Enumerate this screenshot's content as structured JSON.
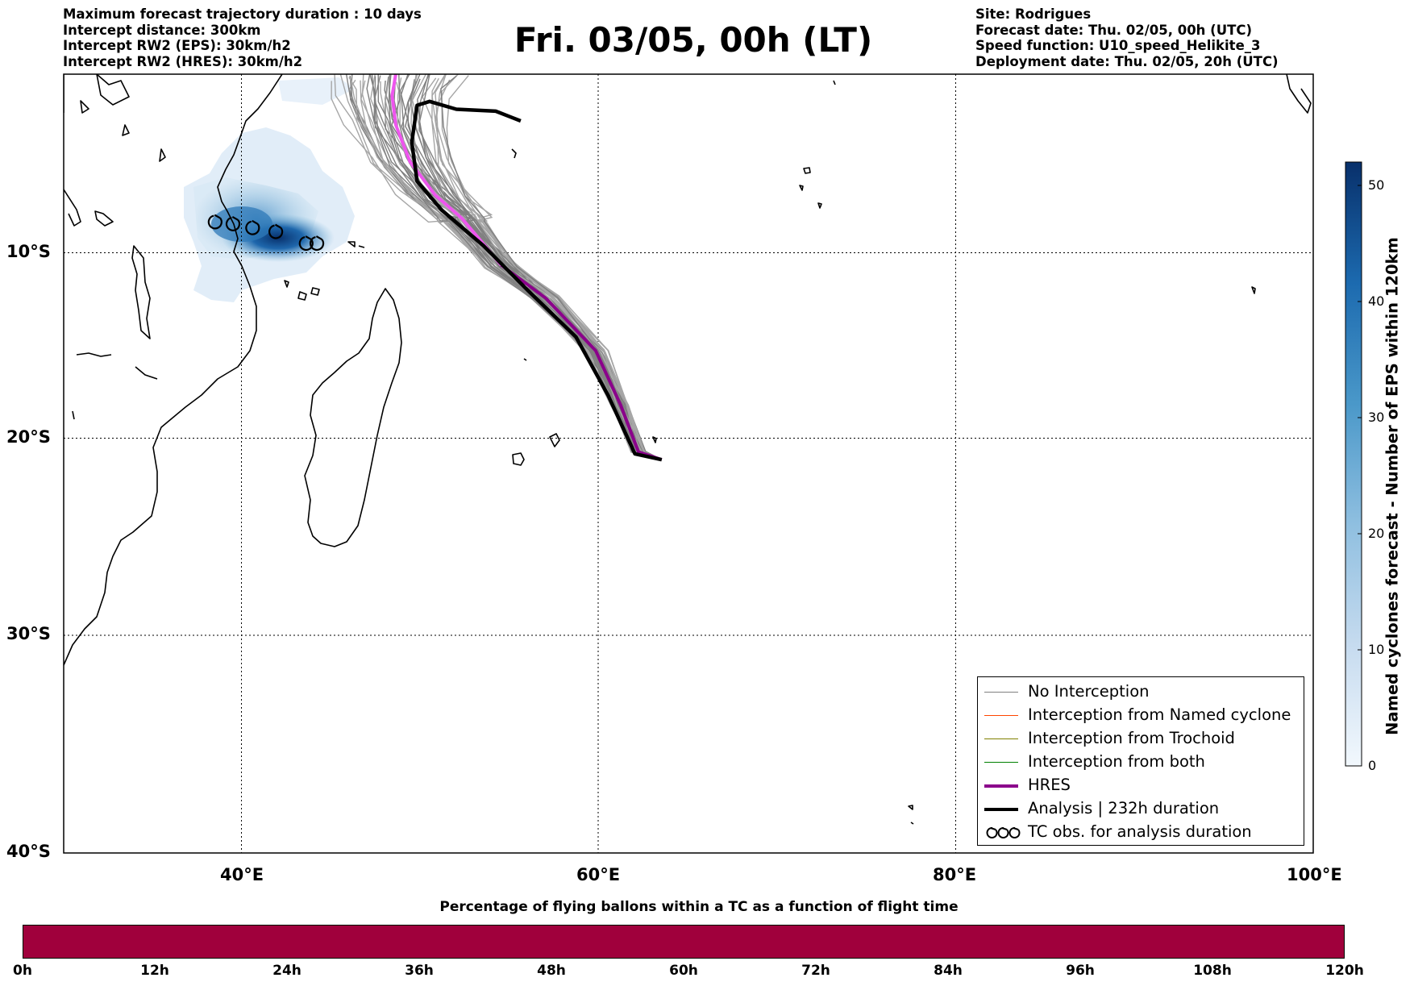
{
  "header": {
    "left_lines": [
      "Maximum forecast trajectory duration : 10 days",
      "Intercept distance: 300km",
      "Intercept RW2 (EPS):  30km/h2",
      "Intercept RW2 (HRES): 30km/h2"
    ],
    "title": "Fri. 03/05, 00h (LT)",
    "right_lines": [
      "Site: Rodrigues",
      "Forecast date: Thu. 02/05, 00h (UTC)",
      "Speed function: U10_speed_Helikite_3",
      "Deployment date: Thu. 02/05, 20h (UTC)"
    ]
  },
  "map": {
    "lon_range": [
      30,
      100
    ],
    "lat_range": [
      -40,
      0
    ],
    "x_ticks": [
      {
        "value": 40,
        "label": "40°E"
      },
      {
        "value": 60,
        "label": "60°E"
      },
      {
        "value": 80,
        "label": "80°E"
      },
      {
        "value": 100,
        "label": "100°E"
      }
    ],
    "y_ticks": [
      {
        "value": -10,
        "label": "10°S"
      },
      {
        "value": -20,
        "label": "20°S"
      },
      {
        "value": -30,
        "label": "30°S"
      },
      {
        "value": -40,
        "label": "40°S"
      }
    ],
    "grid": "dotted",
    "colors": {
      "no_interception": "#808080",
      "named_cyclone": "#ff4500",
      "trochoid": "#808000",
      "both": "#008000",
      "hres": "#8b008b",
      "hres_early": "#ee55ee",
      "analysis": "#000000",
      "density_dark": "#08306b",
      "density_light": "#deebf7",
      "bottom_bar": "#a0003c"
    }
  },
  "chart_data": {
    "type": "map-trajectories",
    "hres_track": [
      [
        63.5,
        -19.8
      ],
      [
        62.2,
        -19.4
      ],
      [
        61.2,
        -17.0
      ],
      [
        59.8,
        -14.2
      ],
      [
        57.0,
        -11.5
      ],
      [
        54.5,
        -9.8
      ],
      [
        52.3,
        -7.4
      ],
      [
        50.8,
        -6.2
      ],
      [
        49.4,
        -4.5
      ],
      [
        48.6,
        -2.6
      ],
      [
        48.4,
        -1.1
      ],
      [
        48.6,
        0.0
      ]
    ],
    "analysis_track": [
      [
        63.5,
        -19.8
      ],
      [
        62.0,
        -19.5
      ],
      [
        60.5,
        -16.5
      ],
      [
        58.7,
        -13.5
      ],
      [
        56.0,
        -11.1
      ],
      [
        53.5,
        -8.8
      ],
      [
        51.2,
        -7.0
      ],
      [
        49.8,
        -5.5
      ],
      [
        49.5,
        -3.5
      ],
      [
        49.8,
        -1.6
      ],
      [
        50.5,
        -1.4
      ],
      [
        52.0,
        -1.8
      ],
      [
        54.2,
        -1.9
      ],
      [
        55.6,
        -2.4
      ]
    ],
    "eps_member_count": 50,
    "tc_observations": [
      [
        38.5,
        -7.6
      ],
      [
        39.5,
        -7.7
      ],
      [
        40.6,
        -7.9
      ],
      [
        41.9,
        -8.1
      ],
      [
        43.6,
        -8.7
      ],
      [
        44.2,
        -8.7
      ]
    ],
    "density_colorbar": {
      "min": 0,
      "max": 52,
      "ticks": [
        0,
        10,
        20,
        30,
        40,
        50
      ]
    }
  },
  "colorbar": {
    "label": "Named cyclones forecast - Number of EPS within 120km",
    "ticks": [
      "0",
      "10",
      "20",
      "30",
      "40",
      "50"
    ]
  },
  "legend": [
    {
      "label": "No Interception",
      "color": "#808080",
      "style": "thin"
    },
    {
      "label": "Interception from Named cyclone",
      "color": "#ff4500",
      "style": "thin"
    },
    {
      "label": "Interception from Trochoid",
      "color": "#808000",
      "style": "thin"
    },
    {
      "label": "Interception from both",
      "color": "#008000",
      "style": "thin"
    },
    {
      "label": "HRES",
      "color": "#8b008b",
      "style": "thick"
    },
    {
      "label": "Analysis | 232h duration",
      "color": "#000000",
      "style": "thick"
    },
    {
      "label": "TC obs. for analysis duration",
      "color": "#000000",
      "style": "symbol"
    }
  ],
  "bottom": {
    "title": "Percentage of flying ballons within a TC as a function of flight time",
    "ticks": [
      "0h",
      "12h",
      "24h",
      "36h",
      "48h",
      "60h",
      "72h",
      "84h",
      "96h",
      "108h",
      "120h"
    ]
  }
}
